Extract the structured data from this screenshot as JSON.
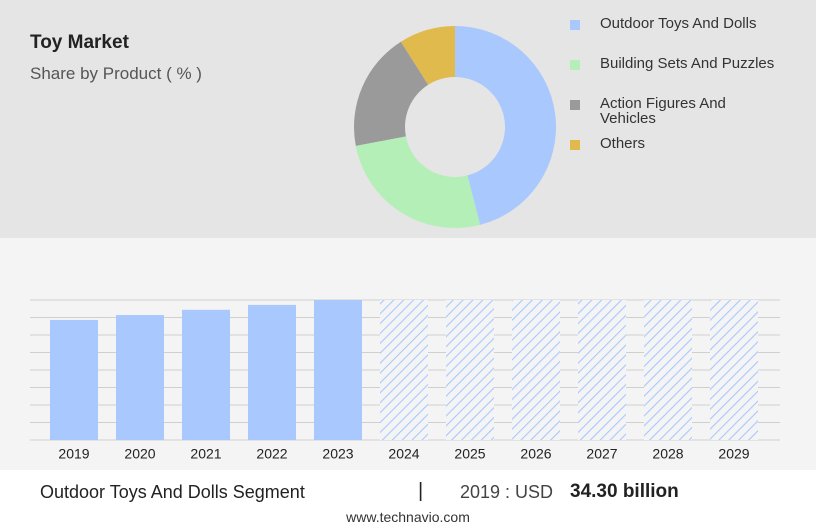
{
  "chart_data": [
    {
      "type": "donut",
      "title": "Toy Market",
      "subtitle": "Share by Product ( % )",
      "categories": [
        "Outdoor Toys And Dolls",
        "Building Sets And Puzzles",
        "Action Figures And Vehicles",
        "Others"
      ],
      "values": [
        46,
        26,
        19,
        9
      ],
      "colors": [
        "#a9c8fe",
        "#b4efb8",
        "#9a9a9a",
        "#e1ba4e"
      ]
    },
    {
      "type": "bar",
      "categories": [
        "2019",
        "2020",
        "2021",
        "2022",
        "2023",
        "2024",
        "2025",
        "2026",
        "2027",
        "2028",
        "2029"
      ],
      "values": [
        34.3,
        35.7,
        37.2,
        38.6,
        40.0,
        null,
        null,
        null,
        null,
        null,
        null
      ],
      "color": "#a9c8fe",
      "ylim": [
        0,
        40
      ]
    }
  ],
  "footer": {
    "segment": "Outdoor Toys And Dolls Segment",
    "separator": "|",
    "prefix": "2019 : USD",
    "value": "34.30 billion",
    "source": "www.technavio.com"
  }
}
